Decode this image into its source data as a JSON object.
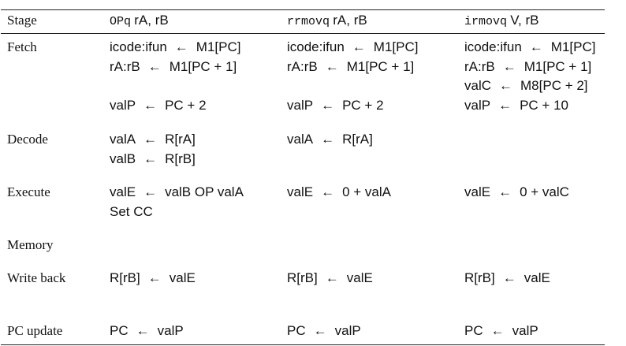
{
  "header": {
    "stage": "Stage",
    "col1": {
      "mnemonic": "OPq",
      "operands": "rA, rB"
    },
    "col2": {
      "mnemonic": "rrmovq",
      "operands": "rA, rB"
    },
    "col3": {
      "mnemonic": "irmovq",
      "operands": "V, rB"
    }
  },
  "stages": {
    "fetch": "Fetch",
    "decode": "Decode",
    "execute": "Execute",
    "memory": "Memory",
    "writeback": "Write back",
    "pcupdate": "PC update"
  },
  "arrow": "←",
  "cells": {
    "fetch": {
      "c1": [
        {
          "lhs": "icode:ifun",
          "rhs": "M1[PC]"
        },
        {
          "lhs": "rA:rB",
          "rhs": "M1[PC + 1]"
        },
        {
          "lhs": "valP",
          "rhs": "PC + 2"
        }
      ],
      "c2": [
        {
          "lhs": "icode:ifun",
          "rhs": "M1[PC]"
        },
        {
          "lhs": "rA:rB",
          "rhs": "M1[PC + 1]"
        },
        {
          "lhs": "valP",
          "rhs": "PC + 2"
        }
      ],
      "c3": [
        {
          "lhs": "icode:ifun",
          "rhs": "M1[PC]"
        },
        {
          "lhs": "rA:rB",
          "rhs": "M1[PC + 1]"
        },
        {
          "lhs": "valC",
          "rhs": "M8[PC + 2]"
        },
        {
          "lhs": "valP",
          "rhs": "PC + 10"
        }
      ]
    },
    "decode": {
      "c1": [
        {
          "lhs": "valA",
          "rhs": "R[rA]"
        },
        {
          "lhs": "valB",
          "rhs": "R[rB]"
        }
      ],
      "c2": [
        {
          "lhs": "valA",
          "rhs": "R[rA]"
        }
      ]
    },
    "execute": {
      "c1": [
        {
          "lhs": "valE",
          "rhs": "valB OP valA"
        }
      ],
      "c1_extra": "Set CC",
      "c2": [
        {
          "lhs": "valE",
          "rhs": "0 + valA"
        }
      ],
      "c3": [
        {
          "lhs": "valE",
          "rhs": "0 + valC"
        }
      ]
    },
    "writeback": {
      "c1": [
        {
          "lhs": "R[rB]",
          "rhs": "valE"
        }
      ],
      "c2": [
        {
          "lhs": "R[rB]",
          "rhs": "valE"
        }
      ],
      "c3": [
        {
          "lhs": "R[rB]",
          "rhs": "valE"
        }
      ]
    },
    "pcupdate": {
      "c1": [
        {
          "lhs": "PC",
          "rhs": "valP"
        }
      ],
      "c2": [
        {
          "lhs": "PC",
          "rhs": "valP"
        }
      ],
      "c3": [
        {
          "lhs": "PC",
          "rhs": "valP"
        }
      ]
    }
  }
}
